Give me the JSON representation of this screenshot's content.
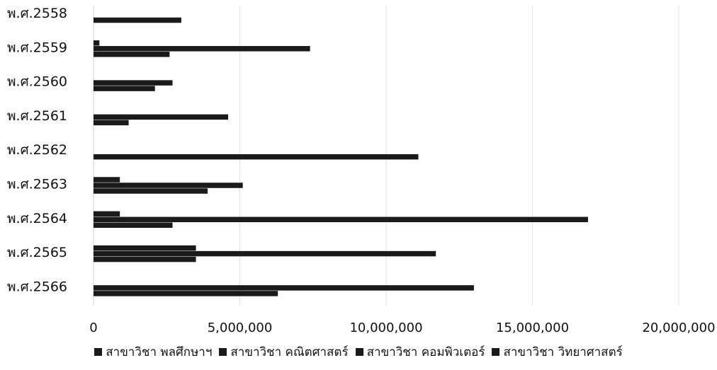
{
  "chart_data": {
    "type": "bar",
    "orientation": "horizontal",
    "categories": [
      "พ.ศ.2558",
      "พ.ศ.2559",
      "พ.ศ.2560",
      "พ.ศ.2561",
      "พ.ศ.2562",
      "พ.ศ.2563",
      "พ.ศ.2564",
      "พ.ศ.2565",
      "พ.ศ.2566"
    ],
    "series": [
      {
        "name": "สาขาวิชา พลศึกษาฯ",
        "values": [
          null,
          200000,
          null,
          null,
          null,
          900000,
          900000,
          3500000,
          null
        ]
      },
      {
        "name": "สาขาวิชา คณิตศาสตร์",
        "values": [
          null,
          7400000,
          2700000,
          4600000,
          null,
          5100000,
          16900000,
          11700000,
          13000000
        ]
      },
      {
        "name": "สาขาวิชา คอมพิวเตอร์",
        "values": [
          3000000,
          2600000,
          2100000,
          1200000,
          11100000,
          3900000,
          2700000,
          3500000,
          6300000
        ]
      },
      {
        "name": "สาขาวิชา วิทยาศาสตร์",
        "values": [
          null,
          null,
          null,
          null,
          null,
          null,
          null,
          null,
          null
        ]
      }
    ],
    "x_ticks": [
      "0",
      "5,000,000",
      "10,000,000",
      "15,000,000",
      "20,000,000"
    ],
    "xlim": [
      0,
      20000000
    ],
    "grid": true,
    "legend_position": "bottom",
    "bar_color": "#1a1a1a"
  }
}
